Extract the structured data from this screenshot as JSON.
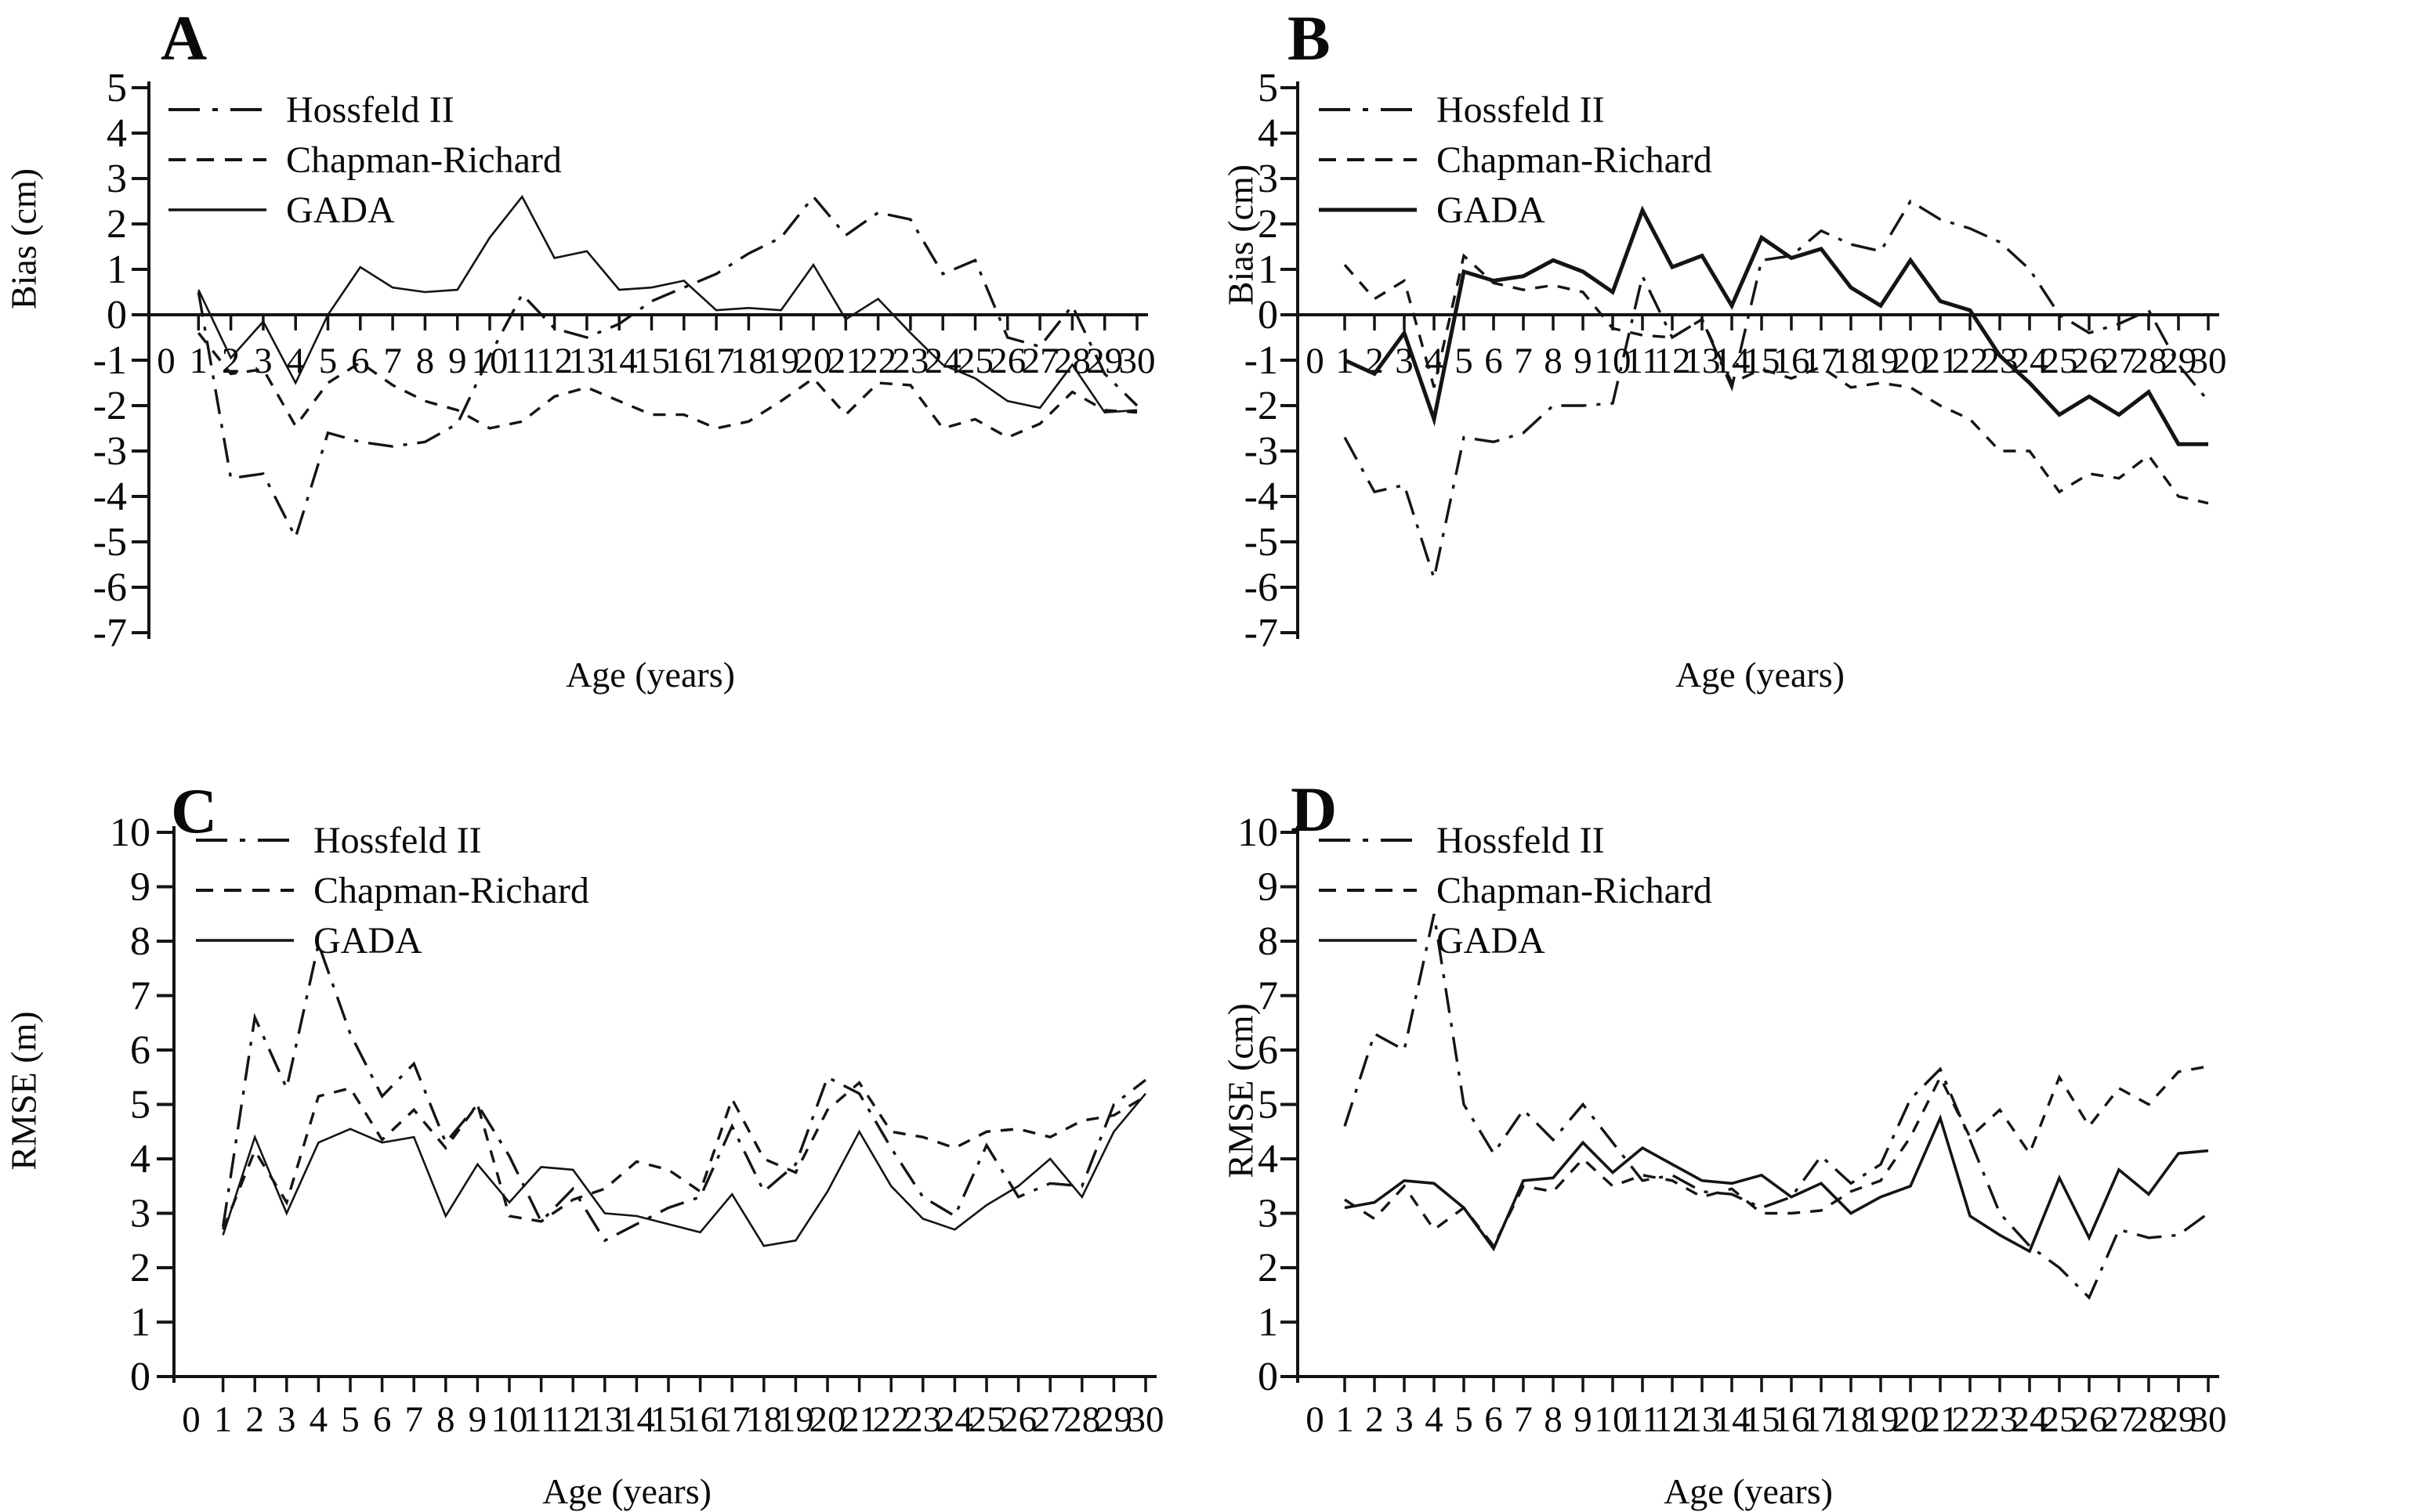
{
  "figure": {
    "background": "#ffffff",
    "line_color": "#141414",
    "text_color": "#0a0a0a"
  },
  "chart_data": [
    {
      "id": "A",
      "type": "line",
      "title": "A",
      "ylabel": "Bias (cm)",
      "xlabel": "Age (years)",
      "ylim": [
        -7,
        5
      ],
      "yticks": [
        5,
        4,
        3,
        2,
        1,
        0,
        -1,
        -2,
        -3,
        -4,
        -5,
        -6,
        -7
      ],
      "xticks": [
        0,
        1,
        2,
        3,
        4,
        5,
        6,
        7,
        8,
        9,
        10,
        11,
        12,
        13,
        14,
        15,
        16,
        17,
        18,
        19,
        20,
        21,
        22,
        23,
        24,
        25,
        26,
        27,
        28,
        29,
        30
      ],
      "x": [
        1,
        2,
        3,
        4,
        5,
        6,
        7,
        8,
        9,
        10,
        11,
        12,
        13,
        14,
        15,
        16,
        17,
        18,
        19,
        20,
        21,
        22,
        23,
        24,
        25,
        26,
        27,
        28,
        29,
        30
      ],
      "grid": false,
      "legend_position": "top-left",
      "series": [
        {
          "name": "Hossfeld II",
          "style": "dashdot",
          "values": [
            0.5,
            -3.6,
            -3.5,
            -4.9,
            -2.6,
            -2.8,
            -2.9,
            -2.8,
            -2.4,
            -0.9,
            0.45,
            -0.3,
            -0.5,
            -0.2,
            0.3,
            0.6,
            0.9,
            1.35,
            1.7,
            2.6,
            1.75,
            2.25,
            2.1,
            0.9,
            1.2,
            -0.5,
            -0.7,
            0.2,
            -1.3,
            -2.0
          ]
        },
        {
          "name": "Chapman-Richard",
          "style": "dashed",
          "values": [
            -0.4,
            -1.3,
            -1.2,
            -2.45,
            -1.5,
            -1.05,
            -1.55,
            -1.9,
            -2.1,
            -2.5,
            -2.35,
            -1.8,
            -1.6,
            -1.9,
            -2.2,
            -2.2,
            -2.5,
            -2.35,
            -1.9,
            -1.4,
            -2.2,
            -1.5,
            -1.55,
            -2.5,
            -2.3,
            -2.7,
            -2.4,
            -1.7,
            -2.1,
            -2.15
          ]
        },
        {
          "name": "GADA",
          "style": "solid",
          "values": [
            0.55,
            -0.95,
            -0.15,
            -1.5,
            0.0,
            1.05,
            0.6,
            0.5,
            0.55,
            1.7,
            2.6,
            1.25,
            1.4,
            0.55,
            0.6,
            0.75,
            0.1,
            0.15,
            0.1,
            1.1,
            -0.1,
            0.35,
            -0.4,
            -1.1,
            -1.4,
            -1.9,
            -2.05,
            -1.1,
            -2.15,
            -2.1
          ]
        }
      ]
    },
    {
      "id": "B",
      "type": "line",
      "title": "B",
      "ylabel": "Bias (cm)",
      "xlabel": "Age (years)",
      "ylim": [
        -7,
        5
      ],
      "yticks": [
        5,
        4,
        3,
        2,
        1,
        0,
        -1,
        -2,
        -3,
        -4,
        -5,
        -6,
        -7
      ],
      "xticks": [
        0,
        1,
        2,
        3,
        4,
        5,
        6,
        7,
        8,
        9,
        10,
        11,
        12,
        13,
        14,
        15,
        16,
        17,
        18,
        19,
        20,
        21,
        22,
        23,
        24,
        25,
        26,
        27,
        28,
        29,
        30
      ],
      "x": [
        1,
        2,
        3,
        4,
        5,
        6,
        7,
        8,
        9,
        10,
        11,
        12,
        13,
        14,
        15,
        16,
        17,
        18,
        19,
        20,
        21,
        22,
        23,
        24,
        25,
        26,
        27,
        28,
        29,
        30
      ],
      "grid": false,
      "legend_position": "top-left",
      "series": [
        {
          "name": "Hossfeld II",
          "style": "dashdot",
          "values": [
            -2.7,
            -3.9,
            -3.75,
            -5.8,
            -2.7,
            -2.8,
            -2.6,
            -2.0,
            -2.0,
            -1.95,
            0.85,
            -0.5,
            -0.1,
            -1.6,
            1.2,
            1.3,
            1.85,
            1.55,
            1.4,
            2.5,
            2.1,
            1.9,
            1.6,
            1.0,
            0.0,
            -0.4,
            -0.2,
            0.1,
            -1.1,
            -1.9
          ]
        },
        {
          "name": "Chapman-Richard",
          "style": "dashed",
          "values": [
            1.1,
            0.35,
            0.75,
            -1.6,
            1.3,
            0.7,
            0.55,
            0.65,
            0.5,
            -0.3,
            -0.45,
            -0.5,
            -0.1,
            -1.5,
            -1.2,
            -1.4,
            -1.15,
            -1.6,
            -1.5,
            -1.6,
            -2.0,
            -2.3,
            -3.0,
            -3.0,
            -3.9,
            -3.5,
            -3.6,
            -3.1,
            -4.0,
            -4.15
          ]
        },
        {
          "name": "GADA",
          "style": "solid",
          "values": [
            -1.0,
            -1.3,
            -0.4,
            -2.3,
            0.95,
            0.75,
            0.85,
            1.2,
            0.95,
            0.5,
            2.3,
            1.05,
            1.3,
            0.2,
            1.7,
            1.25,
            1.45,
            0.6,
            0.2,
            1.2,
            0.3,
            0.1,
            -0.9,
            -1.5,
            -2.2,
            -1.8,
            -2.2,
            -1.7,
            -2.85,
            -2.85
          ]
        }
      ]
    },
    {
      "id": "C",
      "type": "line",
      "title": "C",
      "ylabel": "RMSE (m)",
      "xlabel": "Age (years)",
      "ylim": [
        0,
        10
      ],
      "yticks": [
        10,
        9,
        8,
        7,
        6,
        5,
        4,
        3,
        2,
        1,
        0
      ],
      "xticks": [
        0,
        1,
        2,
        3,
        4,
        5,
        6,
        7,
        8,
        9,
        10,
        11,
        12,
        13,
        14,
        15,
        16,
        17,
        18,
        19,
        20,
        21,
        22,
        23,
        24,
        25,
        26,
        27,
        28,
        29,
        30
      ],
      "x": [
        1,
        2,
        3,
        4,
        5,
        6,
        7,
        8,
        9,
        10,
        11,
        12,
        13,
        14,
        15,
        16,
        17,
        18,
        19,
        20,
        21,
        22,
        23,
        24,
        25,
        26,
        27,
        28,
        29,
        30
      ],
      "grid": false,
      "legend_position": "top-left",
      "series": [
        {
          "name": "Hossfeld II",
          "style": "dashdot",
          "values": [
            2.75,
            6.6,
            5.3,
            7.95,
            6.3,
            5.15,
            5.75,
            4.3,
            5.0,
            4.05,
            2.85,
            3.45,
            2.5,
            2.8,
            3.1,
            3.3,
            4.6,
            3.4,
            3.9,
            5.5,
            5.2,
            4.2,
            3.3,
            2.95,
            4.25,
            3.3,
            3.55,
            3.5,
            5.0,
            5.45
          ]
        },
        {
          "name": "Chapman-Richard",
          "style": "dashed",
          "values": [
            2.7,
            4.15,
            3.2,
            5.15,
            5.3,
            4.35,
            4.9,
            4.2,
            5.0,
            2.95,
            2.85,
            3.25,
            3.45,
            3.95,
            3.8,
            3.4,
            5.1,
            4.0,
            3.75,
            4.9,
            5.4,
            4.5,
            4.4,
            4.2,
            4.5,
            4.55,
            4.4,
            4.7,
            4.8,
            5.15
          ]
        },
        {
          "name": "GADA",
          "style": "solid",
          "values": [
            2.6,
            4.4,
            3.0,
            4.3,
            4.55,
            4.3,
            4.4,
            2.95,
            3.9,
            3.2,
            3.85,
            3.8,
            3.0,
            2.95,
            2.8,
            2.65,
            3.35,
            2.4,
            2.5,
            3.4,
            4.5,
            3.5,
            2.9,
            2.7,
            3.15,
            3.5,
            4.0,
            3.3,
            4.5,
            5.2
          ]
        }
      ]
    },
    {
      "id": "D",
      "type": "line",
      "title": "D",
      "ylabel": "RMSE (cm)",
      "xlabel": "Age (years)",
      "ylim": [
        0,
        10
      ],
      "yticks": [
        10,
        9,
        8,
        7,
        6,
        5,
        4,
        3,
        2,
        1,
        0
      ],
      "xticks": [
        0,
        1,
        2,
        3,
        4,
        5,
        6,
        7,
        8,
        9,
        10,
        11,
        12,
        13,
        14,
        15,
        16,
        17,
        18,
        19,
        20,
        21,
        22,
        23,
        24,
        25,
        26,
        27,
        28,
        29,
        30
      ],
      "x": [
        1,
        2,
        3,
        4,
        5,
        6,
        7,
        8,
        9,
        10,
        11,
        12,
        13,
        14,
        15,
        16,
        17,
        18,
        19,
        20,
        21,
        22,
        23,
        24,
        25,
        26,
        27,
        28,
        29,
        30
      ],
      "grid": false,
      "legend_position": "top-left",
      "series": [
        {
          "name": "Hossfeld II",
          "style": "dashdot",
          "values": [
            4.6,
            6.3,
            6.0,
            8.5,
            5.0,
            4.1,
            4.9,
            4.35,
            5.0,
            4.3,
            3.6,
            3.7,
            3.4,
            3.35,
            3.1,
            3.3,
            4.05,
            3.55,
            3.9,
            5.1,
            5.65,
            4.35,
            3.0,
            2.4,
            2.0,
            1.45,
            2.7,
            2.55,
            2.6,
            3.0
          ]
        },
        {
          "name": "Chapman-Richard",
          "style": "dashed",
          "values": [
            3.25,
            2.9,
            3.5,
            2.7,
            3.1,
            2.4,
            3.5,
            3.4,
            4.0,
            3.5,
            3.7,
            3.6,
            3.3,
            3.45,
            3.0,
            3.0,
            3.05,
            3.4,
            3.6,
            4.4,
            5.5,
            4.4,
            4.9,
            4.1,
            5.5,
            4.6,
            5.3,
            5.0,
            5.6,
            5.7
          ]
        },
        {
          "name": "GADA",
          "style": "solid",
          "values": [
            3.1,
            3.2,
            3.6,
            3.55,
            3.1,
            2.35,
            3.6,
            3.65,
            4.3,
            3.75,
            4.2,
            3.9,
            3.6,
            3.55,
            3.7,
            3.3,
            3.55,
            3.0,
            3.3,
            3.5,
            4.75,
            2.95,
            2.6,
            2.3,
            3.65,
            2.55,
            3.8,
            3.35,
            4.1,
            4.15
          ]
        }
      ]
    }
  ]
}
